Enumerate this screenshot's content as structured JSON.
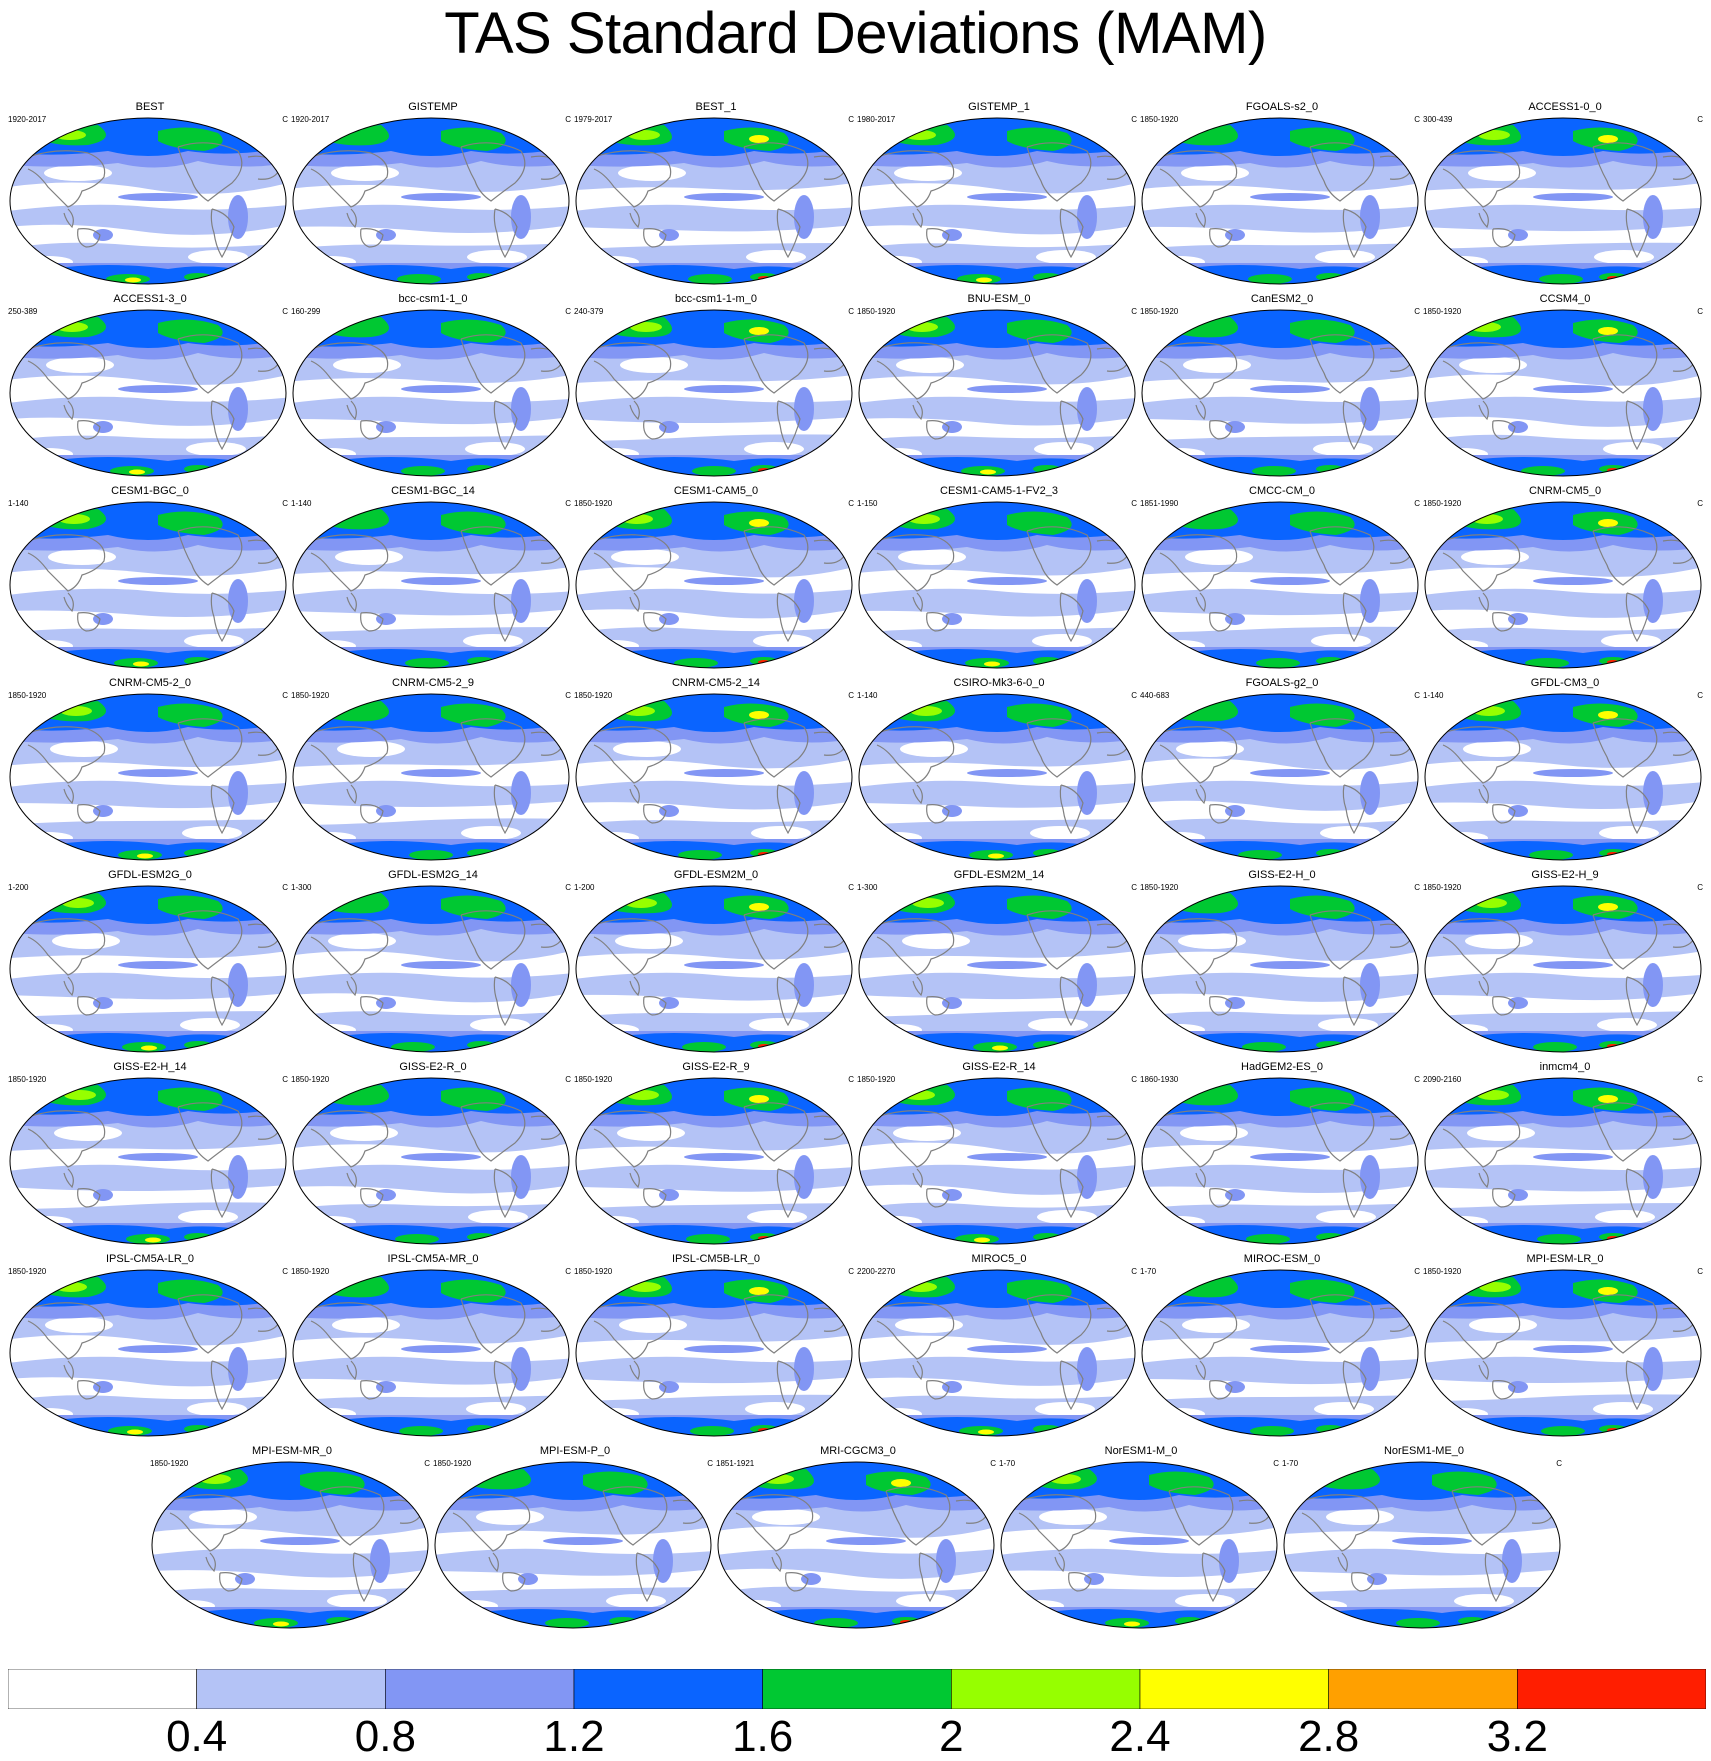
{
  "title": "TAS Standard Deviations (MAM)",
  "unit": "C",
  "colorbar": {
    "levels": [
      "0.4",
      "0.8",
      "1.2",
      "1.6",
      "2",
      "2.4",
      "2.8",
      "3.2"
    ],
    "colors": [
      "#ffffff",
      "#b4c3f6",
      "#8296f4",
      "#0a64ff",
      "#00c832",
      "#96ff00",
      "#ffff00",
      "#ffa000",
      "#ff1e00"
    ]
  },
  "land_outline_color": "#808080",
  "panels": [
    {
      "name": "BEST",
      "period": "1920-2017"
    },
    {
      "name": "GISTEMP",
      "period": "1920-2017"
    },
    {
      "name": "BEST_1",
      "period": "1979-2017"
    },
    {
      "name": "GISTEMP_1",
      "period": "1980-2017"
    },
    {
      "name": "FGOALS-s2_0",
      "period": "1850-1920"
    },
    {
      "name": "ACCESS1-0_0",
      "period": "300-439"
    },
    {
      "name": "ACCESS1-3_0",
      "period": "250-389"
    },
    {
      "name": "bcc-csm1-1_0",
      "period": "160-299"
    },
    {
      "name": "bcc-csm1-1-m_0",
      "period": "240-379"
    },
    {
      "name": "BNU-ESM_0",
      "period": "1850-1920"
    },
    {
      "name": "CanESM2_0",
      "period": "1850-1920"
    },
    {
      "name": "CCSM4_0",
      "period": "1850-1920"
    },
    {
      "name": "CESM1-BGC_0",
      "period": "1-140"
    },
    {
      "name": "CESM1-BGC_14",
      "period": "1-140"
    },
    {
      "name": "CESM1-CAM5_0",
      "period": "1850-1920"
    },
    {
      "name": "CESM1-CAM5-1-FV2_3",
      "period": "1-150"
    },
    {
      "name": "CMCC-CM_0",
      "period": "1851-1990"
    },
    {
      "name": "CNRM-CM5_0",
      "period": "1850-1920"
    },
    {
      "name": "CNRM-CM5-2_0",
      "period": "1850-1920"
    },
    {
      "name": "CNRM-CM5-2_9",
      "period": "1850-1920"
    },
    {
      "name": "CNRM-CM5-2_14",
      "period": "1850-1920"
    },
    {
      "name": "CSIRO-Mk3-6-0_0",
      "period": "1-140"
    },
    {
      "name": "FGOALS-g2_0",
      "period": "440-683"
    },
    {
      "name": "GFDL-CM3_0",
      "period": "1-140"
    },
    {
      "name": "GFDL-ESM2G_0",
      "period": "1-200"
    },
    {
      "name": "GFDL-ESM2G_14",
      "period": "1-300"
    },
    {
      "name": "GFDL-ESM2M_0",
      "period": "1-200"
    },
    {
      "name": "GFDL-ESM2M_14",
      "period": "1-300"
    },
    {
      "name": "GISS-E2-H_0",
      "period": "1850-1920"
    },
    {
      "name": "GISS-E2-H_9",
      "period": "1850-1920"
    },
    {
      "name": "GISS-E2-H_14",
      "period": "1850-1920"
    },
    {
      "name": "GISS-E2-R_0",
      "period": "1850-1920"
    },
    {
      "name": "GISS-E2-R_9",
      "period": "1850-1920"
    },
    {
      "name": "GISS-E2-R_14",
      "period": "1850-1920"
    },
    {
      "name": "HadGEM2-ES_0",
      "period": "1860-1930"
    },
    {
      "name": "inmcm4_0",
      "period": "2090-2160"
    },
    {
      "name": "IPSL-CM5A-LR_0",
      "period": "1850-1920"
    },
    {
      "name": "IPSL-CM5A-MR_0",
      "period": "1850-1920"
    },
    {
      "name": "IPSL-CM5B-LR_0",
      "period": "1850-1920"
    },
    {
      "name": "MIROC5_0",
      "period": "2200-2270"
    },
    {
      "name": "MIROC-ESM_0",
      "period": "1-70"
    },
    {
      "name": "MPI-ESM-LR_0",
      "period": "1850-1920"
    },
    {
      "name": "MPI-ESM-MR_0",
      "period": "1850-1920"
    },
    {
      "name": "MPI-ESM-P_0",
      "period": "1850-1920"
    },
    {
      "name": "MRI-CGCM3_0",
      "period": "1851-1921"
    },
    {
      "name": "NorESM1-M_0",
      "period": "1-70"
    },
    {
      "name": "NorESM1-ME_0",
      "period": "1-70"
    }
  ]
}
